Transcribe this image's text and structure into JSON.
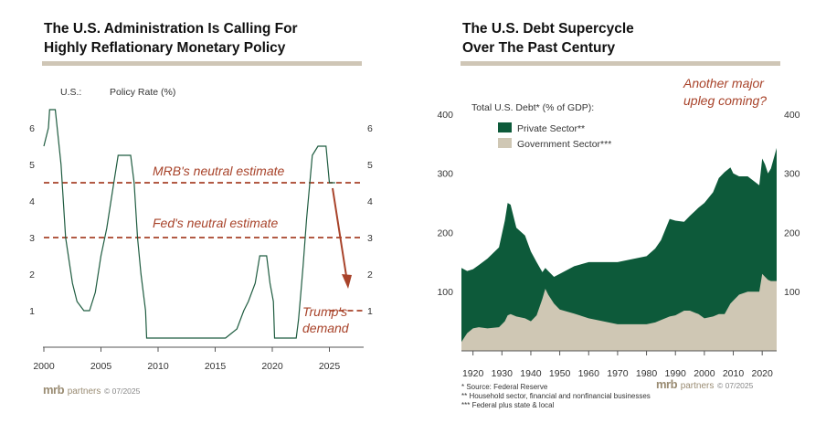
{
  "left": {
    "title_line1": "The U.S. Administration Is Calling For",
    "title_line2": "Highly Reflationary Monetary Policy",
    "header_left": "U.S.:",
    "header_right": "Policy Rate (%)",
    "annotations": {
      "mrb": "MRB's neutral estimate",
      "fed": "Fed's neutral estimate",
      "trump1": "Trump's",
      "trump2": "demand"
    },
    "logo_mrb": "mrb",
    "logo_partners": "partners",
    "logo_date": "© 07/2025"
  },
  "right": {
    "title_line1": "The U.S. Debt Supercycle",
    "title_line2": "Over The Past Century",
    "legend_title": "Total U.S. Debt* (% of GDP):",
    "callout1": "Another major",
    "callout2": "upleg coming?",
    "footnote1": "*   Source: Federal Reserve",
    "footnote2": "**  Household sector, financial and nonfinancial businesses",
    "footnote3": "*** Federal plus state & local",
    "logo_mrb": "mrb",
    "logo_partners": "partners",
    "logo_date": "© 07/2025"
  },
  "colors": {
    "private": "#0d5a3a",
    "government": "#cfc7b4",
    "line": "#1f5c40",
    "annotation": "#a8432a",
    "rule": "#cfc6b6"
  },
  "chart_data": [
    {
      "type": "line",
      "title": "The U.S. Administration Is Calling For Highly Reflationary Monetary Policy",
      "ylabel": "Policy Rate (%)",
      "xlim": [
        2000,
        2028
      ],
      "ylim": [
        0,
        7
      ],
      "x_ticks": [
        "2000",
        "2005",
        "2010",
        "2015",
        "2020",
        "2025"
      ],
      "y_ticks": [
        "1",
        "2",
        "3",
        "4",
        "5",
        "6"
      ],
      "series": [
        {
          "x": [
            2000,
            2000.4,
            2000.5,
            2001.0,
            2001.5,
            2001.9,
            2002.5,
            2002.9,
            2003.5,
            2004.0,
            2004.5,
            2005.0,
            2005.5,
            2006.0,
            2006.5,
            2007.0,
            2007.6,
            2007.9,
            2008.2,
            2008.5,
            2008.9,
            2009,
            2015.9,
            2016.9,
            2017.5,
            2017.9,
            2018.5,
            2018.9,
            2019.5,
            2019.8,
            2020.1,
            2020.2,
            2022.1,
            2022.3,
            2022.5,
            2022.7,
            2023.0,
            2023.5,
            2024.0,
            2024.7,
            2025.0,
            2025.5
          ],
          "values": [
            5.5,
            6.0,
            6.5,
            6.5,
            5.0,
            3.0,
            1.75,
            1.25,
            1.0,
            1.0,
            1.5,
            2.5,
            3.25,
            4.25,
            5.25,
            5.25,
            5.25,
            4.5,
            3.0,
            2.0,
            1.0,
            0.25,
            0.25,
            0.5,
            1.0,
            1.25,
            1.75,
            2.5,
            2.5,
            1.75,
            1.25,
            0.25,
            0.25,
            0.75,
            1.5,
            2.25,
            3.5,
            5.25,
            5.5,
            5.5,
            4.5,
            4.5
          ]
        }
      ],
      "reference_lines": [
        {
          "name": "MRB's neutral estimate",
          "y": 4.5
        },
        {
          "name": "Fed's neutral estimate",
          "y": 3.0
        },
        {
          "name": "Trump's demand",
          "y": 1.0,
          "x": [
            2025,
            2028
          ]
        }
      ]
    },
    {
      "type": "area",
      "title": "The U.S. Debt Supercycle Over The Past Century",
      "ylabel": "Total U.S. Debt* (% of GDP)",
      "xlim": [
        1916,
        2025
      ],
      "ylim": [
        0,
        420
      ],
      "x_ticks": [
        "1920",
        "1930",
        "1940",
        "1950",
        "1960",
        "1970",
        "1980",
        "1990",
        "2000",
        "2010",
        "2020"
      ],
      "y_ticks": [
        "100",
        "200",
        "300",
        "400"
      ],
      "stacked": true,
      "x": [
        1916,
        1918,
        1920,
        1922,
        1925,
        1929,
        1931,
        1932,
        1933,
        1935,
        1938,
        1940,
        1942,
        1944,
        1945,
        1946,
        1948,
        1950,
        1955,
        1960,
        1965,
        1970,
        1975,
        1980,
        1983,
        1985,
        1988,
        1990,
        1993,
        1995,
        1998,
        2000,
        2003,
        2005,
        2007,
        2009,
        2010,
        2012,
        2015,
        2019,
        2020,
        2021,
        2022,
        2023,
        2025
      ],
      "series": [
        {
          "name": "Private Sector**",
          "values": [
            125,
            105,
            100,
            105,
            118,
            135,
            170,
            190,
            185,
            150,
            140,
            118,
            90,
            45,
            35,
            40,
            45,
            60,
            80,
            95,
            100,
            105,
            110,
            115,
            125,
            135,
            165,
            160,
            150,
            160,
            180,
            195,
            210,
            230,
            240,
            230,
            215,
            200,
            195,
            180,
            195,
            190,
            180,
            190,
            225
          ]
        },
        {
          "name": "Government Sector***",
          "values": [
            15,
            30,
            38,
            40,
            38,
            40,
            50,
            60,
            62,
            58,
            55,
            50,
            60,
            88,
            105,
            95,
            80,
            70,
            63,
            55,
            50,
            45,
            45,
            45,
            48,
            52,
            58,
            60,
            68,
            68,
            62,
            55,
            58,
            62,
            62,
            80,
            85,
            95,
            100,
            100,
            130,
            125,
            120,
            118,
            118
          ]
        }
      ]
    }
  ]
}
